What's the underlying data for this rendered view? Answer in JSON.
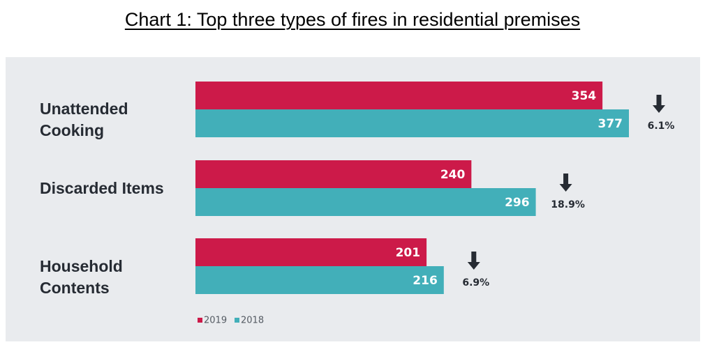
{
  "chart_data": {
    "type": "bar",
    "orientation": "horizontal",
    "title": "Chart 1: Top three types of fires in residential premises",
    "categories": [
      "Unattended\nCooking",
      "Discarded Items",
      "Household\nContents"
    ],
    "series": [
      {
        "name": "2019",
        "color": "#cc1a49",
        "values": [
          354,
          240,
          201
        ]
      },
      {
        "name": "2018",
        "color": "#42afb9",
        "values": [
          377,
          296,
          216
        ]
      }
    ],
    "changes": [
      {
        "direction": "down",
        "icon": "down-arrow-icon",
        "label": "6.1%"
      },
      {
        "direction": "down",
        "icon": "down-arrow-icon",
        "label": "18.9%"
      },
      {
        "direction": "down",
        "icon": "down-arrow-icon",
        "label": "6.9%"
      }
    ],
    "xlim": [
      0,
      377
    ],
    "grid": false,
    "legend_position": "bottom-left"
  }
}
